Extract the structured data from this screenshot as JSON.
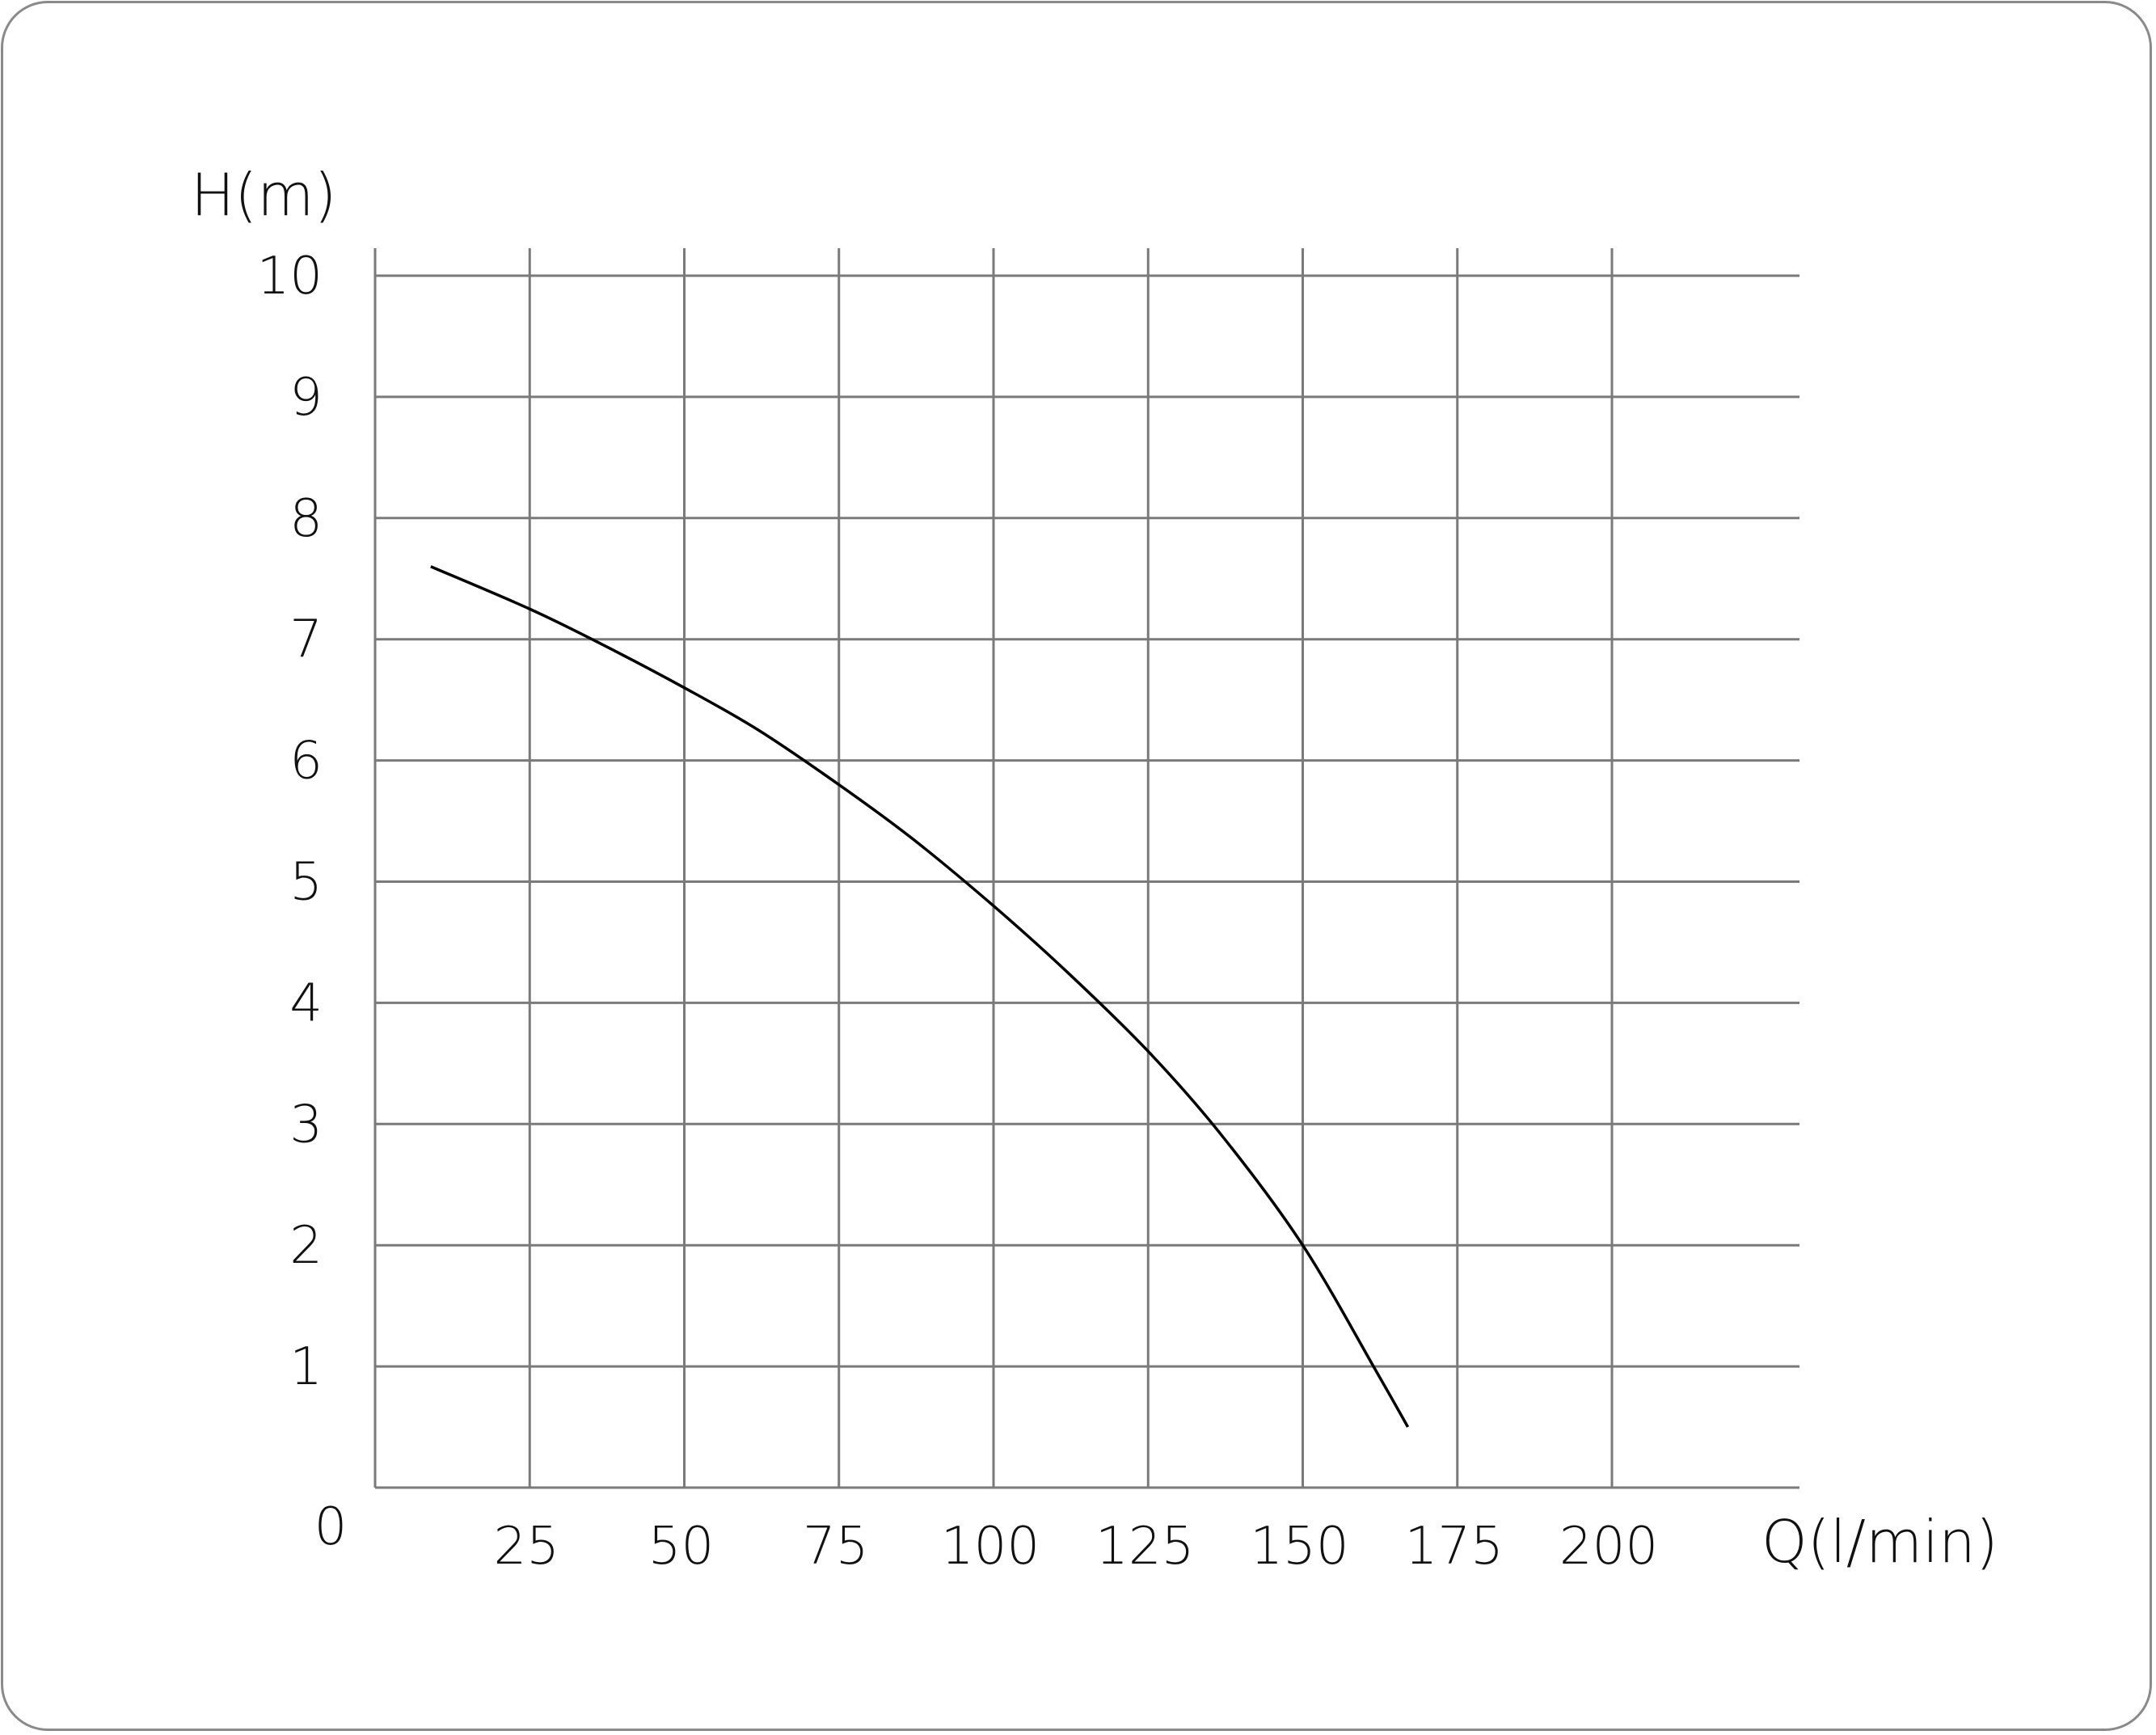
{
  "chart_data": {
    "type": "line",
    "title": "",
    "xlabel": "Q(l/min)",
    "ylabel": "H(m)",
    "xlim": [
      0,
      225
    ],
    "ylim": [
      0,
      10
    ],
    "x_ticks": [
      25,
      50,
      75,
      100,
      125,
      150,
      175,
      200
    ],
    "y_ticks": [
      1,
      2,
      3,
      4,
      5,
      6,
      7,
      8,
      9,
      10
    ],
    "origin_label": "0",
    "grid": true,
    "legend": "none",
    "line_color": "#000000",
    "grid_color": "#7a7a7a",
    "series": [
      {
        "x": [
          9,
          25,
          37,
          50,
          62,
          75,
          87,
          100,
          112,
          125,
          137,
          150,
          162,
          167
        ],
        "y": [
          7.6,
          7.25,
          6.95,
          6.6,
          6.25,
          5.8,
          5.35,
          4.8,
          4.25,
          3.6,
          2.9,
          2.0,
          0.95,
          0.5
        ]
      }
    ]
  }
}
